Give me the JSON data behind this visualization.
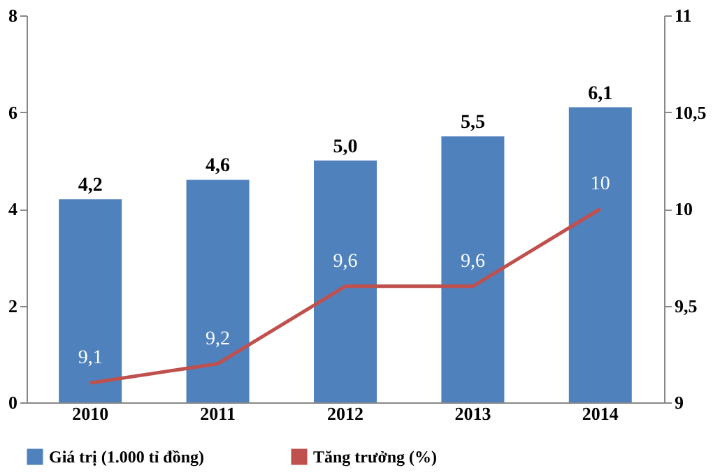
{
  "chart_data": {
    "type": "bar",
    "categories": [
      "2010",
      "2011",
      "2012",
      "2013",
      "2014"
    ],
    "series": [
      {
        "name": "Giá trị (1.000 tỉ đồng)",
        "color": "#4f81bd",
        "values": [
          4.2,
          4.6,
          5.0,
          5.5,
          6.1
        ],
        "value_labels": [
          "4,2",
          "4,6",
          "5,0",
          "5,5",
          "6,1"
        ]
      },
      {
        "name": "Tăng trưởng (%)",
        "type": "line",
        "axis": "y2",
        "color": "#c0504d",
        "values": [
          9.1,
          9.2,
          9.6,
          9.6,
          10
        ],
        "value_labels": [
          "9,1",
          "9,2",
          "9,6",
          "9,6",
          "10"
        ]
      }
    ],
    "ylim": [
      0,
      8
    ],
    "yticks": [
      0,
      2,
      4,
      6,
      8
    ],
    "y2lim": [
      9,
      11
    ],
    "y2ticks": [
      9,
      {
        "value": 9.5,
        "label": "9,5"
      },
      10,
      {
        "value": 10.5,
        "label": "10,5"
      },
      11
    ],
    "grid": false,
    "legend": "bottom",
    "marker": "none",
    "line_style": "solid"
  }
}
